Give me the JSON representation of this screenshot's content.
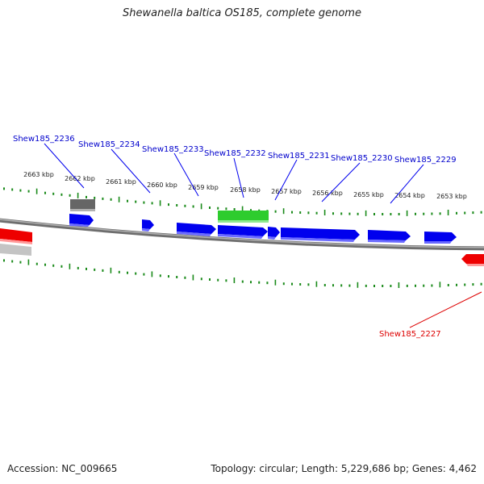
{
  "title": "Shewanella baltica OS185, complete genome",
  "footer": {
    "accession": "Accession: NC_009665",
    "summary": "Topology: circular; Length: 5,229,686 bp; Genes: 4,462"
  },
  "ticks": [
    "2663 kbp",
    "2662 kbp",
    "2661 kbp",
    "2660 kbp",
    "2659 kbp",
    "2658 kbp",
    "2657 kbp",
    "2656 kbp",
    "2655 kbp",
    "2654 kbp",
    "2653 kbp"
  ],
  "gene_labels": [
    "Shew185_2236",
    "Shew185_2234",
    "Shew185_2233",
    "Shew185_2232",
    "Shew185_2231",
    "Shew185_2230",
    "Shew185_2229",
    "Shew185_2227"
  ],
  "colors": {
    "forward_gene": "#0000ee",
    "reverse_gene": "#ee0000",
    "rna_gene": "#2ecc2e",
    "pseudo_gene": "#666666",
    "tick_marks": "#1a8a1a",
    "label_forward": "#0000cc",
    "label_reverse": "#dd0000",
    "backbone": "#808080"
  }
}
